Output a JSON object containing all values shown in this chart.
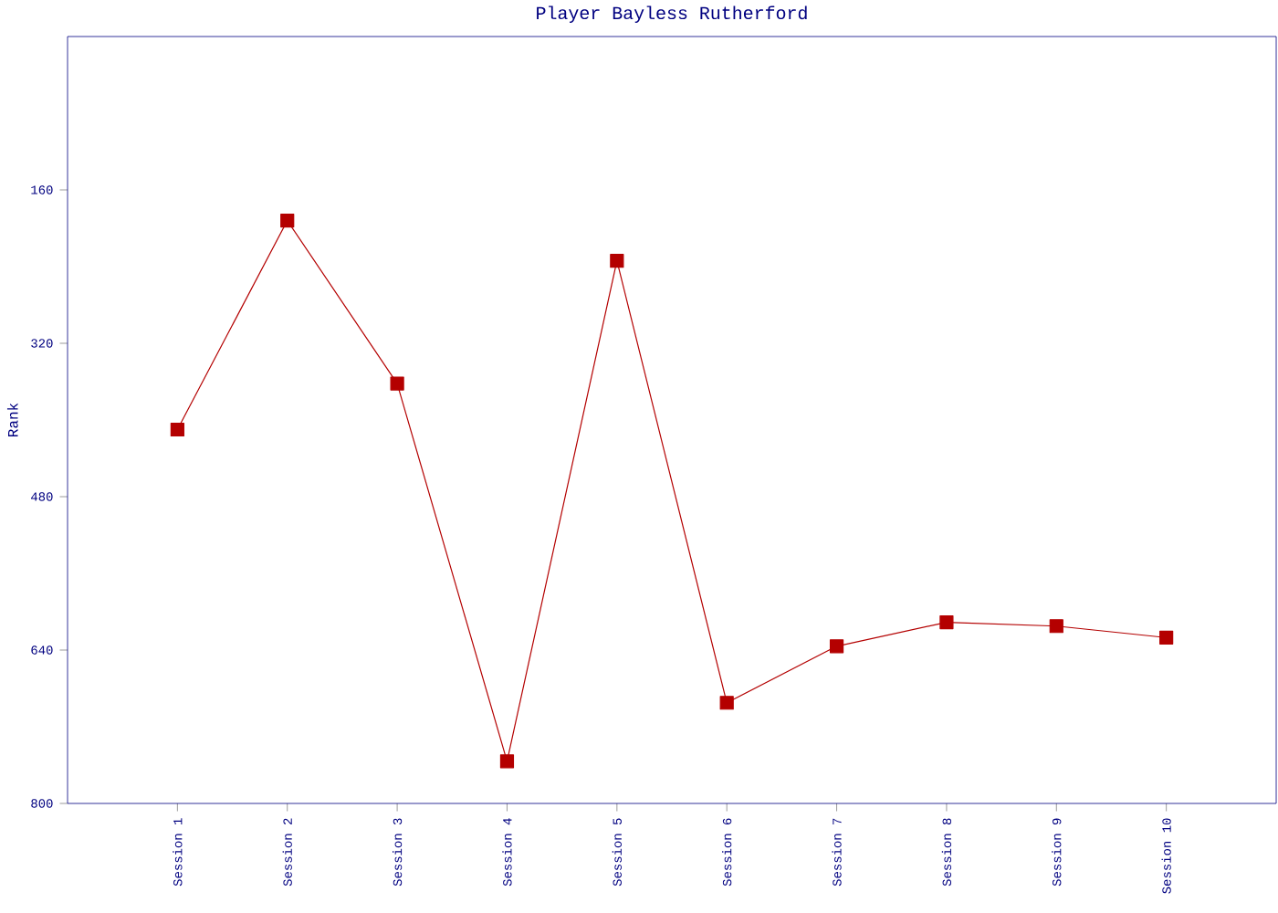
{
  "chart_data": {
    "type": "line",
    "title": "Player Bayless Rutherford",
    "ylabel": "Rank",
    "categories": [
      "Session 1",
      "Session 2",
      "Session 3",
      "Session 4",
      "Session 5",
      "Session 6",
      "Session 7",
      "Session 8",
      "Session 9",
      "Session 10"
    ],
    "values": [
      410,
      192,
      362,
      756,
      234,
      695,
      636,
      611,
      615,
      627
    ],
    "color": "#b40000",
    "marker": "square",
    "line_style": "solid",
    "ylim": [
      800,
      0
    ],
    "yticks": [
      160,
      320,
      480,
      640,
      800
    ],
    "grid": false
  }
}
